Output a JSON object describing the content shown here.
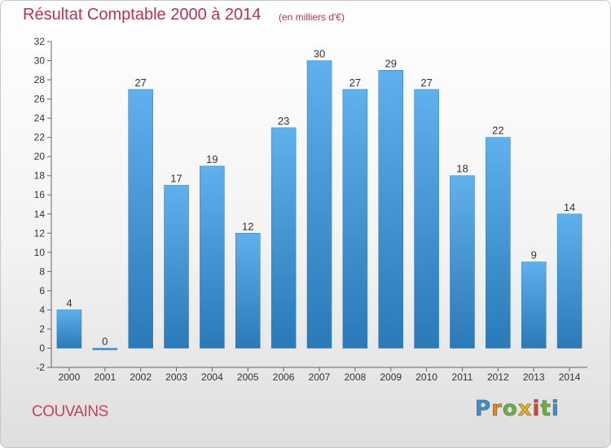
{
  "chart_data": {
    "type": "bar",
    "title": "Résultat Comptable 2000 à 2014",
    "subtitle": "(en milliers d'€)",
    "categories": [
      "2000",
      "2001",
      "2002",
      "2003",
      "2004",
      "2005",
      "2006",
      "2007",
      "2008",
      "2009",
      "2010",
      "2011",
      "2012",
      "2013",
      "2014"
    ],
    "values": [
      4,
      0,
      27,
      17,
      19,
      12,
      23,
      30,
      27,
      29,
      27,
      18,
      22,
      9,
      14
    ],
    "ylim": [
      -2,
      32
    ],
    "yticks": [
      -2,
      0,
      2,
      4,
      6,
      8,
      10,
      12,
      14,
      16,
      18,
      20,
      22,
      24,
      26,
      28,
      30,
      32
    ],
    "xlabel": "",
    "ylabel": "",
    "grid": false,
    "bar_color": "#3a8fd0"
  },
  "commune": "COUVAINS",
  "logo": {
    "letters": [
      "P",
      "r",
      "o",
      "x",
      "i",
      "t",
      "i"
    ],
    "colors": [
      "#3a8fd0",
      "#e08a1e",
      "#6ab23a",
      "#e0b31e",
      "#d94040",
      "#6ab23a",
      "#3a8fd0"
    ]
  },
  "colors": {
    "title": "#b4344b",
    "commune": "#c4435c"
  }
}
